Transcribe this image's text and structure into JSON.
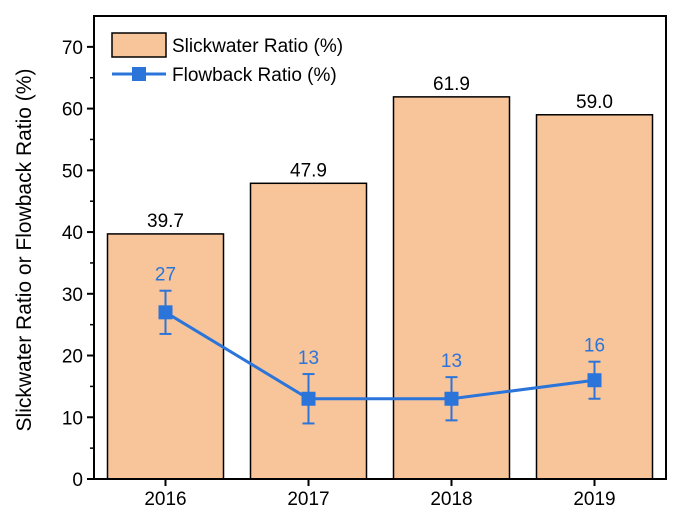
{
  "colors": {
    "bar_fill": "#f8c59b",
    "bar_stroke": "#000000",
    "line": "#2b74d9",
    "axis": "#000000"
  },
  "chart_data": {
    "type": "bar",
    "categories": [
      "2016",
      "2017",
      "2018",
      "2019"
    ],
    "ylabel": "Slickwater Ratio or Flowback Ratio (%)",
    "xlabel": "",
    "ylim": [
      0,
      75
    ],
    "yticks": [
      0,
      10,
      20,
      30,
      40,
      50,
      60,
      70
    ],
    "legend_position": "top-left",
    "series": [
      {
        "name": "Slickwater Ratio (%)",
        "kind": "bar",
        "values": [
          39.7,
          47.9,
          61.9,
          59.0
        ],
        "labels": [
          "39.7",
          "47.9",
          "61.9",
          "59.0"
        ]
      },
      {
        "name": "Flowback Ratio (%)",
        "kind": "line",
        "marker": "square",
        "values": [
          27,
          13,
          13,
          16
        ],
        "labels": [
          "27",
          "13",
          "13",
          "16"
        ],
        "error_low": [
          23.5,
          9,
          9.5,
          13
        ],
        "error_high": [
          30.5,
          17,
          16.5,
          19
        ]
      }
    ]
  }
}
